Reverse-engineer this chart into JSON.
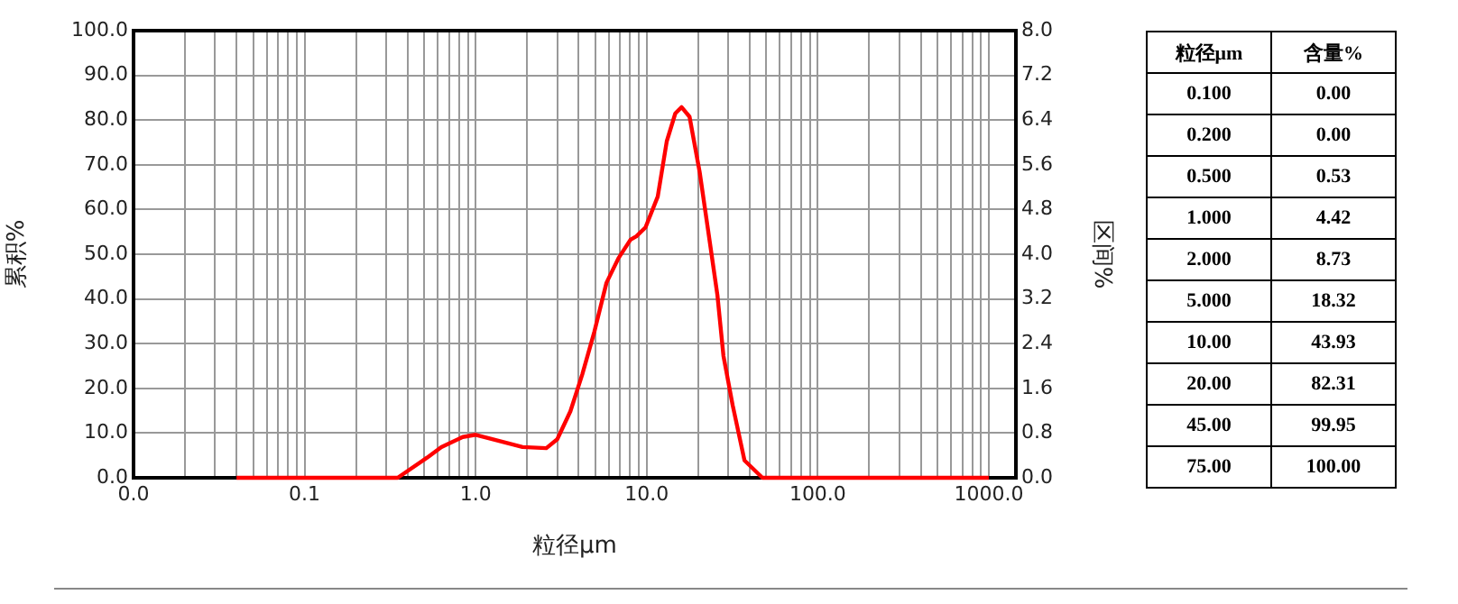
{
  "chart_data": [
    {
      "type": "line",
      "xlabel": "粒径μm",
      "ylabel": "累积%",
      "y2label": "区间%",
      "log": "x",
      "grid": true,
      "legend": false,
      "marker": "none",
      "line_style": "solid",
      "xlim": [
        0.01,
        1440
      ],
      "xticks": [
        {
          "value": 0.01,
          "label": "0.0"
        },
        {
          "value": 0.02,
          "label": null
        },
        {
          "value": 0.03,
          "label": null
        },
        {
          "value": 0.04,
          "label": null
        },
        {
          "value": 0.05,
          "label": null
        },
        {
          "value": 0.06,
          "label": null
        },
        {
          "value": 0.07,
          "label": null
        },
        {
          "value": 0.08,
          "label": null
        },
        {
          "value": 0.09,
          "label": null
        },
        {
          "value": 0.1,
          "label": "0.1"
        },
        {
          "value": 0.2,
          "label": null
        },
        {
          "value": 0.3,
          "label": null
        },
        {
          "value": 0.4,
          "label": null
        },
        {
          "value": 0.5,
          "label": null
        },
        {
          "value": 0.6,
          "label": null
        },
        {
          "value": 0.7,
          "label": null
        },
        {
          "value": 0.8,
          "label": null
        },
        {
          "value": 0.9,
          "label": null
        },
        {
          "value": 1,
          "label": "1.0"
        },
        {
          "value": 2,
          "label": null
        },
        {
          "value": 3,
          "label": null
        },
        {
          "value": 4,
          "label": null
        },
        {
          "value": 5,
          "label": null
        },
        {
          "value": 6,
          "label": null
        },
        {
          "value": 7,
          "label": null
        },
        {
          "value": 8,
          "label": null
        },
        {
          "value": 9,
          "label": null
        },
        {
          "value": 10,
          "label": "10.0"
        },
        {
          "value": 20,
          "label": null
        },
        {
          "value": 30,
          "label": null
        },
        {
          "value": 40,
          "label": null
        },
        {
          "value": 50,
          "label": null
        },
        {
          "value": 60,
          "label": null
        },
        {
          "value": 70,
          "label": null
        },
        {
          "value": 80,
          "label": null
        },
        {
          "value": 90,
          "label": null
        },
        {
          "value": 100,
          "label": "100.0"
        },
        {
          "value": 200,
          "label": null
        },
        {
          "value": 300,
          "label": null
        },
        {
          "value": 400,
          "label": null
        },
        {
          "value": 500,
          "label": null
        },
        {
          "value": 600,
          "label": null
        },
        {
          "value": 700,
          "label": null
        },
        {
          "value": 800,
          "label": null
        },
        {
          "value": 900,
          "label": null
        },
        {
          "value": 1000,
          "label": "1000.0"
        }
      ],
      "ylim": [
        0,
        100
      ],
      "yticks": [
        {
          "value": 0,
          "label": "0.0"
        },
        {
          "value": 10,
          "label": "10.0"
        },
        {
          "value": 20,
          "label": "20.0"
        },
        {
          "value": 30,
          "label": "30.0"
        },
        {
          "value": 40,
          "label": "40.0"
        },
        {
          "value": 50,
          "label": "50.0"
        },
        {
          "value": 60,
          "label": "60.0"
        },
        {
          "value": 70,
          "label": "70.0"
        },
        {
          "value": 80,
          "label": "80.0"
        },
        {
          "value": 90,
          "label": "90.0"
        },
        {
          "value": 100,
          "label": "100.0"
        }
      ],
      "y2lim": [
        0,
        8
      ],
      "y2ticks": [
        {
          "value": 0,
          "label": "0.0"
        },
        0.8,
        1.6,
        2.4,
        3.2,
        {
          "value": 4,
          "label": "4.0"
        },
        4.8,
        5.6,
        6.4,
        7.2,
        {
          "value": 8,
          "label": "8.0"
        }
      ],
      "series": [
        {
          "color": "#ff0000",
          "axis": "y2",
          "x": [
            0.04,
            0.1,
            0.2,
            0.35,
            0.52,
            0.63,
            0.84,
            1.0,
            1.25,
            1.88,
            2.59,
            3.0,
            3.58,
            4.2,
            4.95,
            5.82,
            6.84,
            8.04,
            8.7,
            9.84,
            11.6,
            13.1,
            14.7,
            16.0,
            17.8,
            20.4,
            23.0,
            25.9,
            28.1,
            31.8,
            37.3,
            47.5,
            100,
            1000
          ],
          "values": [
            0,
            0,
            0,
            0,
            0.36,
            0.55,
            0.73,
            0.77,
            0.69,
            0.55,
            0.53,
            0.69,
            1.19,
            1.85,
            2.62,
            3.49,
            3.93,
            4.26,
            4.32,
            4.48,
            5.03,
            6.02,
            6.52,
            6.63,
            6.46,
            5.47,
            4.37,
            3.27,
            2.18,
            1.3,
            0.31,
            0,
            0,
            0
          ]
        }
      ]
    },
    {
      "type": "other",
      "xlabel": "粒径μm",
      "ylabel": "含量%",
      "categories": [
        "0.100",
        "0.200",
        "0.500",
        "1.000",
        "2.000",
        "5.000",
        "10.00",
        "20.00",
        "45.00",
        "75.00"
      ],
      "values": [
        0,
        0,
        0.53,
        4.42,
        8.73,
        18.32,
        43.93,
        82.31,
        99.95,
        100
      ],
      "value_labels": [
        "0.00",
        "0.00",
        "0.53",
        "4.42",
        "8.73",
        "18.32",
        "43.93",
        "82.31",
        "99.95",
        "100.00"
      ]
    }
  ]
}
